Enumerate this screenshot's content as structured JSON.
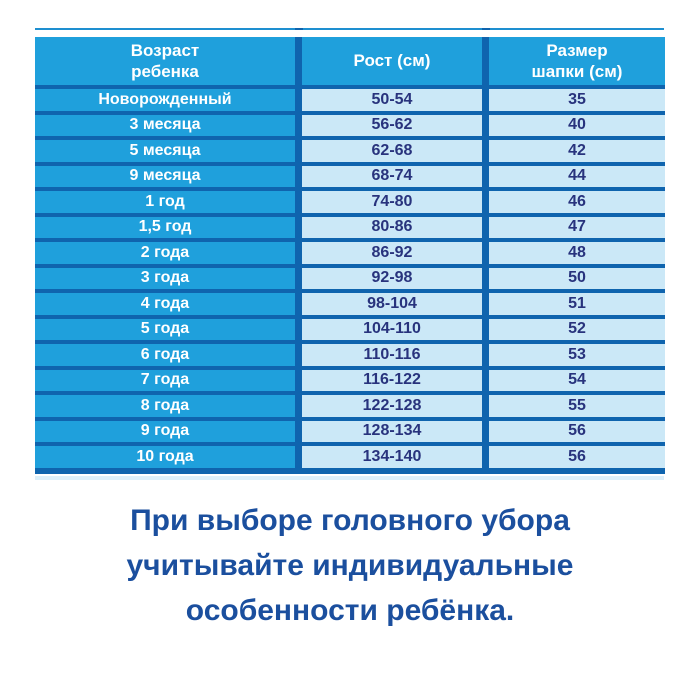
{
  "colors": {
    "background": "#ffffff",
    "header_and_age_cells": "#1FA0DC",
    "table_borders": "#0F64AE",
    "value_cells": "#CBE8F7",
    "value_text": "#28337D",
    "header_text": "#ffffff",
    "caption_text": "#1B4F9E",
    "top_accent_line": "#1E8FD0",
    "bottom_accent_strip": "#DCEFFA"
  },
  "chart_data": {
    "type": "table",
    "title": "",
    "columns": [
      {
        "key": "age",
        "label": "Возраст\nребенка"
      },
      {
        "key": "height_cm",
        "label": "Рост (см)"
      },
      {
        "key": "hat_size_cm",
        "label": "Размер\nшапки (см)"
      }
    ],
    "rows": [
      {
        "age": "Новорожденный",
        "height_cm": "50-54",
        "hat_size_cm": "35"
      },
      {
        "age": "3 месяца",
        "height_cm": "56-62",
        "hat_size_cm": "40"
      },
      {
        "age": "5 месяца",
        "height_cm": "62-68",
        "hat_size_cm": "42"
      },
      {
        "age": "9 месяца",
        "height_cm": "68-74",
        "hat_size_cm": "44"
      },
      {
        "age": "1 год",
        "height_cm": "74-80",
        "hat_size_cm": "46"
      },
      {
        "age": "1,5 год",
        "height_cm": "80-86",
        "hat_size_cm": "47"
      },
      {
        "age": "2 года",
        "height_cm": "86-92",
        "hat_size_cm": "48"
      },
      {
        "age": "3 года",
        "height_cm": "92-98",
        "hat_size_cm": "50"
      },
      {
        "age": "4 года",
        "height_cm": "98-104",
        "hat_size_cm": "51"
      },
      {
        "age": "5 года",
        "height_cm": "104-110",
        "hat_size_cm": "52"
      },
      {
        "age": "6 года",
        "height_cm": "110-116",
        "hat_size_cm": "53"
      },
      {
        "age": "7 года",
        "height_cm": "116-122",
        "hat_size_cm": "54"
      },
      {
        "age": "8 года",
        "height_cm": "122-128",
        "hat_size_cm": "55"
      },
      {
        "age": "9 года",
        "height_cm": "128-134",
        "hat_size_cm": "56"
      },
      {
        "age": "10 года",
        "height_cm": "134-140",
        "hat_size_cm": "56"
      }
    ]
  },
  "caption": {
    "lines": [
      "При выборе головного убора",
      "учитывайте индивидуальные",
      "особенности ребёнка."
    ]
  }
}
